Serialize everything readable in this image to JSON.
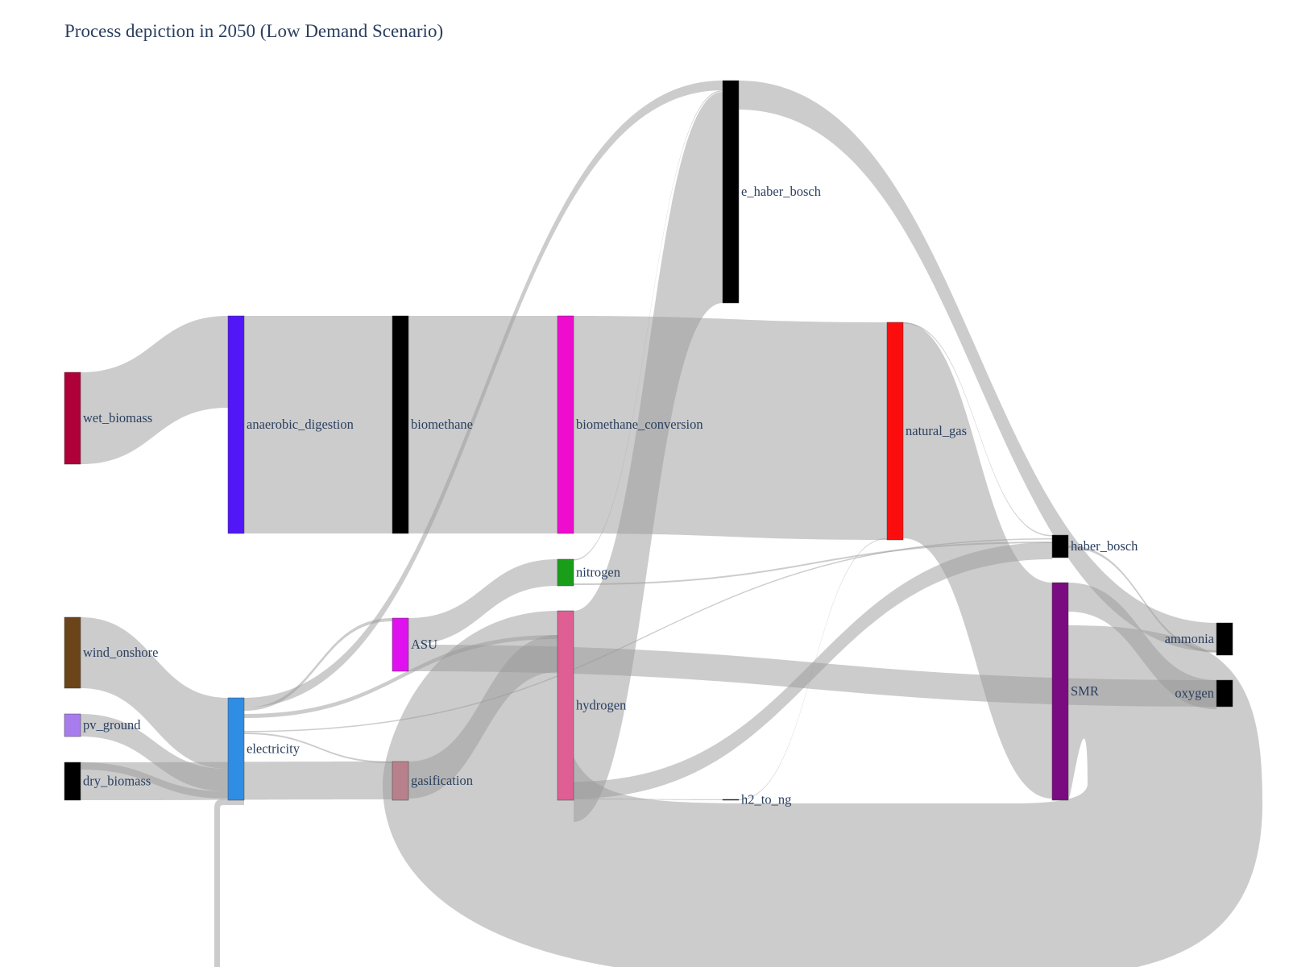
{
  "title": "Process depiction in 2050 (Low Demand Scenario)",
  "chart_data": {
    "type": "sankey",
    "nodes": [
      {
        "id": "wet_biomass",
        "label": "wet_biomass",
        "color": "#b0003a"
      },
      {
        "id": "anaerobic_digestion",
        "label": "anaerobic_digestion",
        "color": "#5117f7"
      },
      {
        "id": "biomethane",
        "label": "biomethane",
        "color": "#000000"
      },
      {
        "id": "biomethane_conversion",
        "label": "biomethane_conversion",
        "color": "#ee0ccf"
      },
      {
        "id": "natural_gas",
        "label": "natural_gas",
        "color": "#fc0d0d"
      },
      {
        "id": "e_haber_bosch",
        "label": "e_haber_bosch",
        "color": "#000000"
      },
      {
        "id": "haber_bosch",
        "label": "haber_bosch",
        "color": "#000000"
      },
      {
        "id": "nitrogen",
        "label": "nitrogen",
        "color": "#1a9e1a"
      },
      {
        "id": "wind_onshore",
        "label": "wind_onshore",
        "color": "#6b4419"
      },
      {
        "id": "pv_ground",
        "label": "pv_ground",
        "color": "#a97cee"
      },
      {
        "id": "dry_biomass",
        "label": "dry_biomass",
        "color": "#000000"
      },
      {
        "id": "electricity",
        "label": "electricity",
        "color": "#2f8de4"
      },
      {
        "id": "ASU",
        "label": "ASU",
        "color": "#df12ef"
      },
      {
        "id": "gasification",
        "label": "gasification",
        "color": "#b8808a"
      },
      {
        "id": "hydrogen",
        "label": "hydrogen",
        "color": "#df5f95"
      },
      {
        "id": "h2_to_ng",
        "label": "h2_to_ng",
        "color": "#000000"
      },
      {
        "id": "SMR",
        "label": "SMR",
        "color": "#7a0b80"
      },
      {
        "id": "ammonia",
        "label": "ammonia",
        "color": "#000000"
      },
      {
        "id": "oxygen",
        "label": "oxygen",
        "color": "#000000"
      }
    ],
    "links": [
      {
        "source": "wet_biomass",
        "target": "anaerobic_digestion",
        "value": 113
      },
      {
        "source": "anaerobic_digestion",
        "target": "biomethane",
        "value": 262
      },
      {
        "source": "biomethane",
        "target": "biomethane_conversion",
        "value": 262
      },
      {
        "source": "biomethane_conversion",
        "target": "natural_gas",
        "value": 262
      },
      {
        "source": "natural_gas",
        "target": "SMR",
        "value": 260
      },
      {
        "source": "natural_gas",
        "target": "haber_bosch",
        "value": 1
      },
      {
        "source": "wind_onshore",
        "target": "electricity",
        "value": 86
      },
      {
        "source": "pv_ground",
        "target": "electricity",
        "value": 28
      },
      {
        "source": "dry_biomass",
        "target": "electricity",
        "value": 12
      },
      {
        "source": "dry_biomass",
        "target": "gasification",
        "value": 33
      },
      {
        "source": "electricity",
        "target": "e_haber_bosch",
        "value": 14
      },
      {
        "source": "electricity",
        "target": "ASU",
        "value": 3
      },
      {
        "source": "electricity",
        "target": "haber_bosch",
        "value": 1
      },
      {
        "source": "electricity",
        "target": "gasification",
        "value": 1
      },
      {
        "source": "electricity",
        "target": "hydrogen",
        "value": 4
      },
      {
        "source": "ASU",
        "target": "nitrogen",
        "value": 32
      },
      {
        "source": "ASU",
        "target": "oxygen",
        "value": 32
      },
      {
        "source": "nitrogen",
        "target": "e_haber_bosch",
        "value": 2
      },
      {
        "source": "nitrogen",
        "target": "haber_bosch",
        "value": 1
      },
      {
        "source": "gasification",
        "target": "hydrogen",
        "value": 14
      },
      {
        "source": "hydrogen",
        "target": "e_haber_bosch",
        "value": 200
      },
      {
        "source": "hydrogen",
        "target": "haber_bosch",
        "value": 22
      },
      {
        "source": "hydrogen",
        "target": "h2_to_ng",
        "value": 1
      },
      {
        "source": "h2_to_ng",
        "target": "natural_gas",
        "value": 1
      },
      {
        "source": "SMR",
        "target": "hydrogen",
        "value": 210
      },
      {
        "source": "SMR",
        "target": "oxygen",
        "value": 30
      },
      {
        "source": "e_haber_bosch",
        "target": "ammonia",
        "value": 35
      },
      {
        "source": "haber_bosch",
        "target": "ammonia",
        "value": 3
      }
    ]
  }
}
